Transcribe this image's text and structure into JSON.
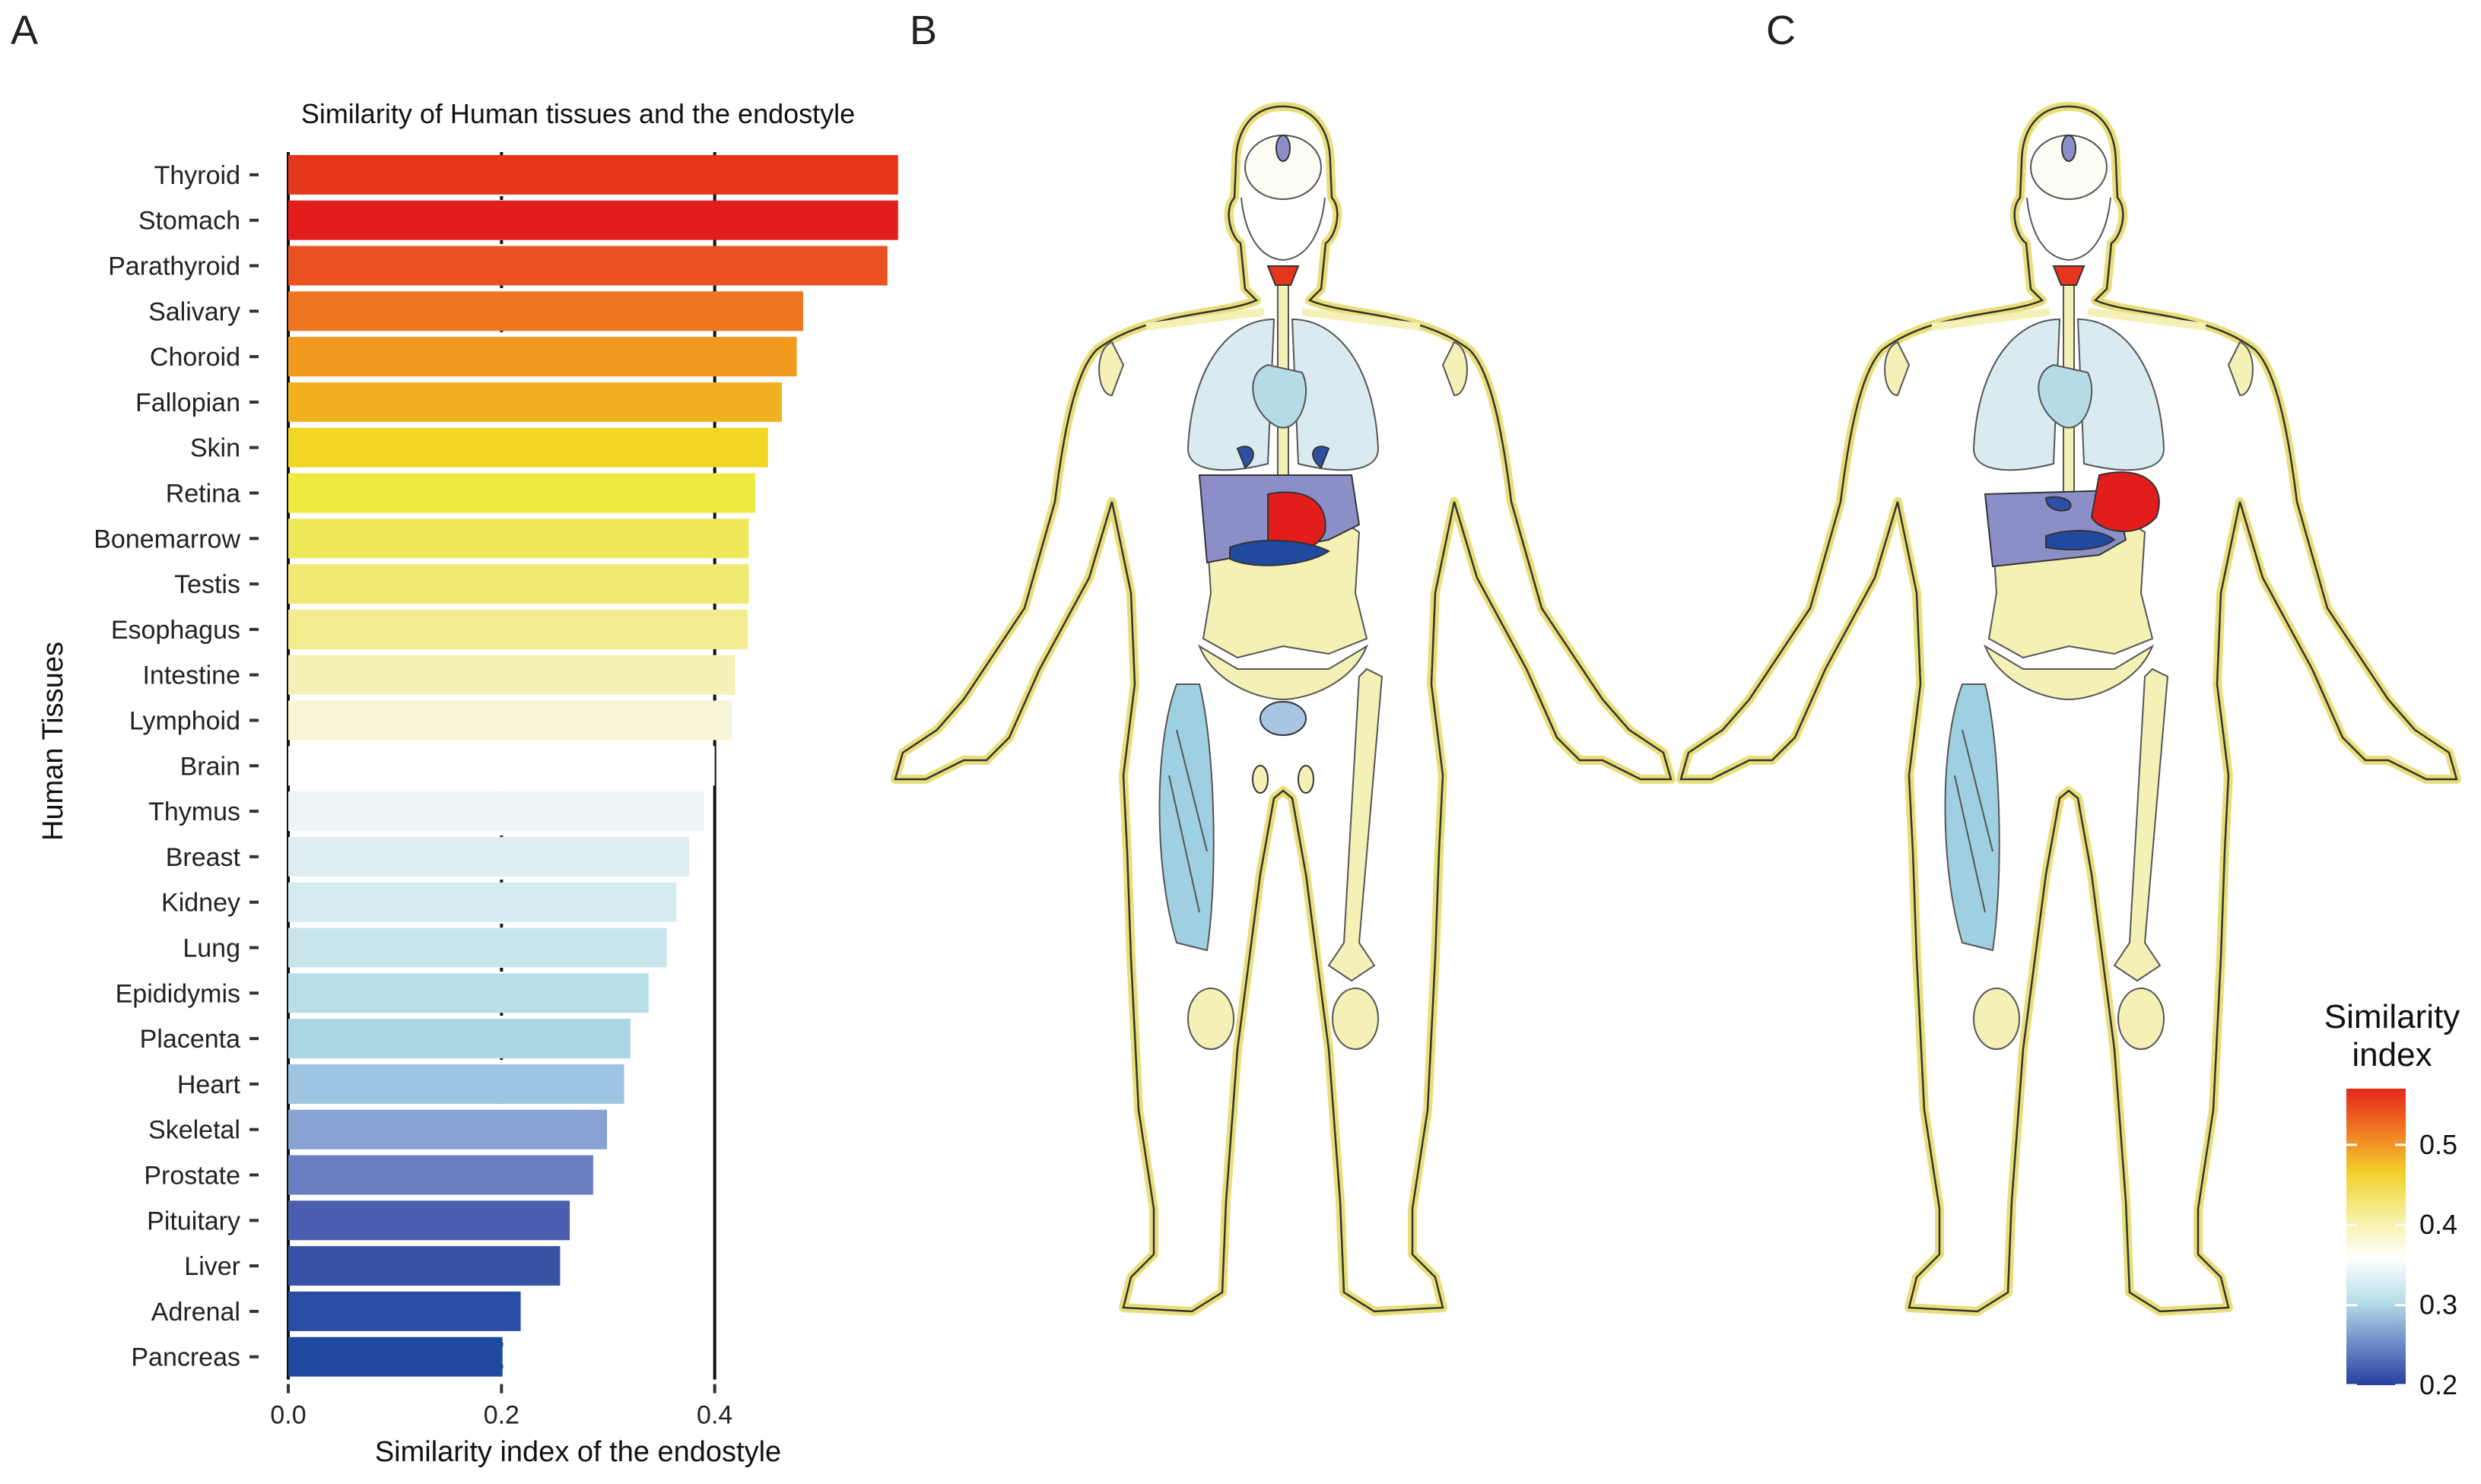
{
  "panels": {
    "a_label": "A",
    "b_label": "B",
    "c_label": "C"
  },
  "chart_data": {
    "type": "bar",
    "orientation": "horizontal",
    "title": "Similarity of Human tissues and the endostyle",
    "xlabel": "Similarity index of the endostyle",
    "ylabel": "Human Tissues",
    "xlim": [
      0.0,
      0.58
    ],
    "xticks": [
      "0.0",
      "0.2",
      "0.4"
    ],
    "grid": "dotted vertical at 0.2 and 0.4",
    "reference_line": 0.4,
    "categories": [
      "Thyroid",
      "Stomach",
      "Parathyroid",
      "Salivary",
      "Choroid",
      "Fallopian",
      "Skin",
      "Retina",
      "Bonemarrow",
      "Testis",
      "Esophagus",
      "Intestine",
      "Lymphoid",
      "Brain",
      "Thymus",
      "Breast",
      "Kidney",
      "Lung",
      "Epididymis",
      "Placenta",
      "Heart",
      "Skeletal",
      "Prostate",
      "Pituitary",
      "Liver",
      "Adrenal",
      "Pancreas"
    ],
    "values": [
      0.572,
      0.572,
      0.562,
      0.483,
      0.477,
      0.463,
      0.45,
      0.438,
      0.432,
      0.432,
      0.431,
      0.419,
      0.416,
      0.4,
      0.39,
      0.376,
      0.364,
      0.355,
      0.338,
      0.321,
      0.315,
      0.299,
      0.286,
      0.264,
      0.255,
      0.218,
      0.201
    ],
    "colors": [
      "#e4361a",
      "#e31d1c",
      "#ea5120",
      "#ee7621",
      "#f29a1f",
      "#f2b120",
      "#f3d523",
      "#efea40",
      "#efe95a",
      "#f0ea72",
      "#f3ec8e",
      "#f5f0b3",
      "#f8f6d6",
      "#ffffff",
      "#eef5f9",
      "#dfeef2",
      "#d4ebf0",
      "#c8e5ec",
      "#b8dee8",
      "#aad6e3",
      "#9dc4e2",
      "#86a1d2",
      "#6a7fc1",
      "#4a5daf",
      "#3753a5",
      "#284da2",
      "#1f4aa0"
    ]
  },
  "legend": {
    "title_line1": "Similarity",
    "title_line2": "index",
    "ticks": [
      "0.5",
      "0.4",
      "0.3",
      "0.2"
    ],
    "range": [
      0.2,
      0.57
    ],
    "gradient": [
      "#e4261a",
      "#f07a22",
      "#f3d22c",
      "#f4ef9a",
      "#ffffff",
      "#b9dfe8",
      "#6d8ec8",
      "#283f9f"
    ]
  },
  "body_colors": {
    "outline": "#e9df7a",
    "outline_fill": "#f7f4c8",
    "bone": "#f4f0b6",
    "lung": "#d9ebf1",
    "heart": "#b5dbe6",
    "liver": "#8c8ec8",
    "stomach": "#e31d1c",
    "pancreas": "#1f4aa0",
    "kidney": "#2f4fa5",
    "thyroid": "#e4361a",
    "intestine": "#f5f0b3",
    "bladder": "#a9c5e4",
    "muscle": "#9fd0e1",
    "brain": "#fdfcf4",
    "pituitary": "#8c8ec8"
  }
}
